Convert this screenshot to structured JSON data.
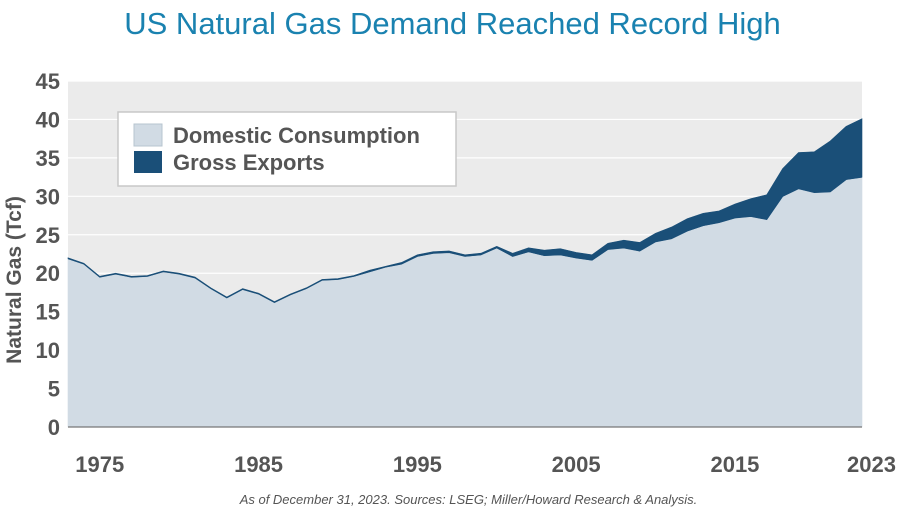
{
  "chart_data": {
    "type": "area",
    "title": "US Natural Gas Demand Reached Record High",
    "xlabel": "",
    "ylabel": "Natural Gas (Tcf)",
    "xlim": [
      1973,
      2023
    ],
    "ylim": [
      0,
      45
    ],
    "y_ticks": [
      "0",
      "5",
      "10",
      "15",
      "20",
      "25",
      "30",
      "35",
      "40",
      "45"
    ],
    "x_ticks": [
      "1975",
      "1985",
      "1995",
      "2005",
      "2015",
      "2023"
    ],
    "grid": "horizontal",
    "legend_position": "top-left",
    "stacked": true,
    "x": [
      1973,
      1974,
      1975,
      1976,
      1977,
      1978,
      1979,
      1980,
      1981,
      1982,
      1983,
      1984,
      1985,
      1986,
      1987,
      1988,
      1989,
      1990,
      1991,
      1992,
      1993,
      1994,
      1995,
      1996,
      1997,
      1998,
      1999,
      2000,
      2001,
      2002,
      2003,
      2004,
      2005,
      2006,
      2007,
      2008,
      2009,
      2010,
      2011,
      2012,
      2013,
      2014,
      2015,
      2016,
      2017,
      2018,
      2019,
      2020,
      2021,
      2022,
      2023
    ],
    "series": [
      {
        "name": "Domestic Consumption",
        "color": "#d1dbe4",
        "values": [
          21.9,
          21.2,
          19.5,
          19.9,
          19.5,
          19.6,
          20.2,
          19.9,
          19.4,
          18.0,
          16.8,
          17.9,
          17.3,
          16.2,
          17.2,
          18.0,
          19.1,
          19.2,
          19.6,
          20.2,
          20.8,
          21.2,
          22.2,
          22.6,
          22.7,
          22.2,
          22.4,
          23.3,
          22.2,
          22.8,
          22.3,
          22.4,
          22.0,
          21.7,
          23.1,
          23.3,
          22.9,
          24.1,
          24.5,
          25.5,
          26.2,
          26.6,
          27.2,
          27.4,
          27.0,
          30.0,
          31.0,
          30.5,
          30.6,
          32.2,
          32.5
        ]
      },
      {
        "name": "Gross Exports",
        "color": "#1a4f78",
        "values": [
          0.1,
          0.1,
          0.1,
          0.1,
          0.1,
          0.1,
          0.1,
          0.1,
          0.1,
          0.1,
          0.1,
          0.1,
          0.1,
          0.1,
          0.1,
          0.1,
          0.1,
          0.1,
          0.1,
          0.2,
          0.1,
          0.2,
          0.2,
          0.2,
          0.2,
          0.2,
          0.2,
          0.2,
          0.4,
          0.5,
          0.7,
          0.8,
          0.7,
          0.7,
          0.8,
          1.0,
          1.1,
          1.1,
          1.5,
          1.6,
          1.6,
          1.5,
          1.8,
          2.3,
          3.2,
          3.6,
          4.7,
          5.3,
          6.6,
          6.9,
          7.6
        ]
      }
    ]
  },
  "footnote": "As of December 31, 2023. Sources: LSEG; Miller/Howard Research & Analysis."
}
